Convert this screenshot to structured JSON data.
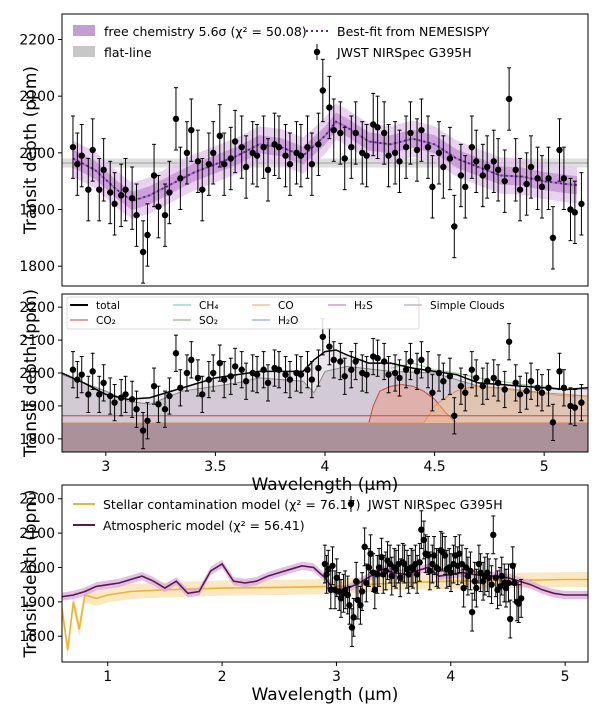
{
  "chart_data": [
    {
      "type": "line",
      "ylabel": "Transit depth (ppm)",
      "xlim": [
        2.8,
        5.2
      ],
      "ylim": [
        1765,
        2245
      ],
      "yticks": [
        1800,
        1900,
        2000,
        2100,
        2200
      ],
      "grid": false,
      "legend_left": [
        {
          "label": "free chemistry 5.6σ (χ² = 50.08)",
          "color": "#b07cc6"
        },
        {
          "label": "flat-line",
          "color": "#bdbdbd"
        }
      ],
      "legend_right": [
        {
          "label": "Best-fit from NEMESISPY",
          "color": "#5b2a86"
        },
        {
          "label": "JWST NIRSpec G395H",
          "color": "#000000"
        }
      ],
      "flat_line_value": 1982,
      "model_x": [
        2.85,
        2.95,
        3.05,
        3.12,
        3.2,
        3.3,
        3.4,
        3.5,
        3.6,
        3.7,
        3.8,
        3.9,
        4.0,
        4.05,
        4.1,
        4.2,
        4.3,
        4.4,
        4.5,
        4.6,
        4.7,
        4.8,
        4.9,
        5.0,
        5.1,
        5.15
      ],
      "model_y": [
        1990,
        1970,
        1935,
        1915,
        1925,
        1945,
        1965,
        1980,
        1995,
        2015,
        2010,
        1995,
        2030,
        2055,
        2045,
        2020,
        2015,
        2025,
        2015,
        1990,
        1975,
        1960,
        1958,
        1950,
        1945,
        1943
      ],
      "series_obs": {
        "name": "JWST NIRSpec G395H",
        "x": [
          2.85,
          2.87,
          2.89,
          2.92,
          2.94,
          2.97,
          2.99,
          3.02,
          3.04,
          3.07,
          3.09,
          3.12,
          3.14,
          3.17,
          3.19,
          3.22,
          3.24,
          3.27,
          3.29,
          3.32,
          3.34,
          3.37,
          3.39,
          3.42,
          3.44,
          3.47,
          3.49,
          3.52,
          3.54,
          3.57,
          3.59,
          3.62,
          3.64,
          3.67,
          3.69,
          3.72,
          3.74,
          3.77,
          3.79,
          3.82,
          3.84,
          3.87,
          3.89,
          3.92,
          3.94,
          3.97,
          3.99,
          4.02,
          4.04,
          4.07,
          4.09,
          4.12,
          4.14,
          4.17,
          4.19,
          4.22,
          4.24,
          4.27,
          4.29,
          4.32,
          4.34,
          4.37,
          4.39,
          4.42,
          4.44,
          4.47,
          4.49,
          4.52,
          4.54,
          4.57,
          4.59,
          4.62,
          4.64,
          4.67,
          4.69,
          4.72,
          4.74,
          4.77,
          4.79,
          4.82,
          4.84,
          4.87,
          4.89,
          4.92,
          4.94,
          4.97,
          4.99,
          5.02,
          5.04,
          5.07,
          5.09,
          5.12,
          5.14,
          5.17
        ],
        "y": [
          2010,
          1980,
          1995,
          1935,
          2005,
          1935,
          1970,
          1930,
          1910,
          1925,
          1935,
          1920,
          1890,
          1825,
          1855,
          1960,
          1905,
          1890,
          1930,
          2060,
          1955,
          2000,
          2040,
          1985,
          1935,
          1980,
          2000,
          2030,
          1980,
          1990,
          2020,
          2010,
          1975,
          2000,
          1995,
          2010,
          1970,
          2015,
          2010,
          1995,
          1980,
          2000,
          1995,
          2010,
          1980,
          2015,
          2110,
          2080,
          2040,
          2035,
          1990,
          2010,
          2035,
          2000,
          1995,
          2050,
          2045,
          2035,
          1995,
          2000,
          1985,
          2010,
          2035,
          2005,
          2040,
          2010,
          1940,
          2000,
          1975,
          1990,
          1870,
          1960,
          1940,
          2010,
          1985,
          1960,
          1975,
          1985,
          1970,
          1950,
          2095,
          1970,
          1935,
          1945,
          1975,
          1955,
          1940,
          1955,
          1850,
          2005,
          1955,
          1900,
          1895,
          1910
        ],
        "err": 55
      }
    },
    {
      "type": "area",
      "xlabel": "Wavelength (μm)",
      "ylabel": "Transit depth (ppm)",
      "xlim": [
        2.8,
        5.2
      ],
      "ylim": [
        1760,
        2240
      ],
      "xticks": [
        3.0,
        3.5,
        4.0,
        4.5,
        5.0
      ],
      "yticks": [
        1800,
        1900,
        2000,
        2100,
        2200
      ],
      "legend": [
        {
          "label": "total",
          "color": "#000000"
        },
        {
          "label": "CO₂",
          "color": "#e27d7d"
        },
        {
          "label": "CH₄",
          "color": "#9ad8da"
        },
        {
          "label": "SO₂",
          "color": "#9ccc9c"
        },
        {
          "label": "CO",
          "color": "#f2c48a"
        },
        {
          "label": "H₂O",
          "color": "#a5b9d9"
        },
        {
          "label": "H₂S",
          "color": "#c79fd0"
        },
        {
          "label": "Simple Clouds",
          "color": "#c7b2c7"
        }
      ],
      "cloud_level": 1848,
      "base_level": 1870,
      "total_x": [
        2.8,
        2.9,
        3.0,
        3.1,
        3.2,
        3.3,
        3.4,
        3.5,
        3.6,
        3.7,
        3.8,
        3.9,
        3.95,
        4.0,
        4.05,
        4.1,
        4.2,
        4.3,
        4.4,
        4.5,
        4.6,
        4.7,
        4.8,
        4.9,
        5.0,
        5.1,
        5.2
      ],
      "total_y": [
        2000,
        1970,
        1935,
        1920,
        1925,
        1945,
        1965,
        1985,
        1995,
        2005,
        2005,
        2005,
        2040,
        2065,
        2070,
        2055,
        2030,
        2030,
        2015,
        2005,
        1995,
        1970,
        1965,
        1960,
        1955,
        1950,
        1955
      ],
      "h2s_x": [
        2.8,
        3.0,
        3.1,
        3.2,
        3.35,
        3.5,
        3.6,
        3.7,
        3.8,
        3.9,
        3.95,
        4.0,
        4.1,
        4.3,
        4.5,
        4.7,
        4.9,
        5.1,
        5.2
      ],
      "h2s_y": [
        1995,
        1945,
        1915,
        1905,
        1945,
        1960,
        1970,
        1985,
        1980,
        1975,
        1940,
        2005,
        2020,
        2005,
        2000,
        1960,
        1945,
        1930,
        1930
      ],
      "co2_x": [
        2.8,
        4.2,
        4.22,
        4.25,
        4.3,
        4.35,
        4.4,
        4.45,
        4.5,
        4.55,
        4.6,
        5.2
      ],
      "co2_y": [
        1848,
        1848,
        1900,
        1945,
        1960,
        1965,
        1960,
        1945,
        1920,
        1880,
        1848,
        1848
      ],
      "co_x": [
        2.8,
        4.45,
        4.5,
        4.55,
        4.6,
        4.65,
        4.7,
        4.8,
        5.0,
        5.2
      ],
      "co_y": [
        1848,
        1848,
        1900,
        1925,
        1945,
        1955,
        1960,
        1955,
        1940,
        1930
      ],
      "series_obs": {
        "name": "JWST NIRSpec G395H",
        "err": 55
      }
    },
    {
      "type": "line",
      "xlabel": "Wavelength (μm)",
      "ylabel": "Transit depth (ppm)",
      "xlim": [
        0.6,
        5.2
      ],
      "ylim": [
        1725,
        2240
      ],
      "xticks": [
        1,
        2,
        3,
        4,
        5
      ],
      "yticks": [
        1800,
        1900,
        2000,
        2100,
        2200
      ],
      "legend": [
        {
          "label": "Stellar contamination model (χ² = 76.17)",
          "color": "#f0b429"
        },
        {
          "label": "Atmospheric model (χ² = 56.41)",
          "color": "#5b1a4e"
        },
        {
          "label": "JWST NIRSpec G395H",
          "color": "#000000"
        }
      ],
      "stellar_x": [
        0.6,
        0.65,
        0.7,
        0.75,
        0.8,
        0.9,
        1.0,
        1.2,
        1.5,
        2.0,
        2.5,
        3.0,
        3.5,
        4.0,
        4.5,
        5.0,
        5.2
      ],
      "stellar_y": [
        1880,
        1760,
        1900,
        1820,
        1920,
        1910,
        1920,
        1930,
        1935,
        1940,
        1942,
        1945,
        1955,
        1960,
        1962,
        1965,
        1965
      ],
      "atmo_x": [
        0.6,
        0.7,
        0.8,
        0.9,
        1.0,
        1.1,
        1.2,
        1.3,
        1.4,
        1.5,
        1.6,
        1.7,
        1.8,
        1.9,
        2.0,
        2.1,
        2.2,
        2.3,
        2.4,
        2.5,
        2.6,
        2.7,
        2.8,
        2.9,
        3.0,
        3.1,
        3.2,
        3.3,
        3.4,
        3.5,
        3.6,
        3.7,
        3.8,
        3.9,
        4.0,
        4.1,
        4.2,
        4.3,
        4.4,
        4.5,
        4.6,
        4.7,
        4.8,
        4.9,
        5.0,
        5.1,
        5.2
      ],
      "atmo_y": [
        1915,
        1920,
        1930,
        1945,
        1950,
        1955,
        1965,
        1975,
        1960,
        1940,
        1960,
        1925,
        1930,
        1990,
        2010,
        1960,
        1955,
        1960,
        1975,
        1985,
        1995,
        2005,
        2000,
        1970,
        1925,
        1940,
        1955,
        1975,
        1995,
        1985,
        1980,
        1990,
        2000,
        1975,
        1980,
        1985,
        1980,
        1975,
        1975,
        1970,
        1960,
        1950,
        1935,
        1925,
        1920,
        1920,
        1920
      ],
      "series_obs": {
        "name": "JWST NIRSpec G395H",
        "err": 55
      }
    }
  ]
}
